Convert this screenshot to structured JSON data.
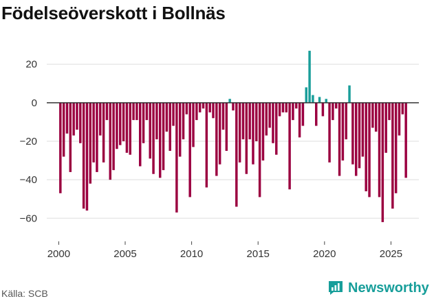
{
  "title": "Födelseöverskott i Bollnäs",
  "source": "Källa: SCB",
  "brand": "Newsworthy",
  "colors": {
    "negative": "#9b0040",
    "positive": "#1a9e9a",
    "grid": "#dddddd",
    "zero": "#333333",
    "brand": "#179e9a"
  },
  "chart_data": {
    "type": "bar",
    "title": "Födelseöverskott i Bollnäs",
    "xlabel": "",
    "ylabel": "",
    "ylim": [
      -72,
      32
    ],
    "xlim": [
      1999.1,
      2027.1
    ],
    "x_ticks": [
      2000,
      2005,
      2010,
      2015,
      2020,
      2025
    ],
    "y_ticks": [
      20,
      0,
      -20,
      -40,
      -60
    ],
    "grid": true,
    "granularity": "quarterly",
    "x_start": "2000 Q1",
    "values": [
      -47,
      -28,
      -16,
      -36,
      -17,
      -14,
      -21,
      -55,
      -56,
      -42,
      -31,
      -36,
      -17,
      -31,
      -9,
      -40,
      -35,
      -24,
      -22,
      -20,
      -26,
      -27,
      -9,
      -9,
      -33,
      -21,
      -9,
      -29,
      -37,
      -19,
      -39,
      -35,
      -15,
      -25,
      -12,
      -57,
      -28,
      -19,
      -6,
      -49,
      -23,
      -9,
      -5,
      -3,
      -44,
      -5,
      -8,
      -38,
      -32,
      -14,
      -25,
      2,
      -4,
      -54,
      -31,
      -19,
      -37,
      -19,
      -32,
      -20,
      -49,
      -30,
      -17,
      -13,
      -21,
      -27,
      -7,
      -5,
      -5,
      -45,
      -9,
      -3,
      -18,
      -12,
      8,
      27,
      4,
      -12,
      3,
      -7,
      2,
      -31,
      -9,
      -3,
      -38,
      -30,
      -19,
      9,
      -32,
      -38,
      -34,
      -28,
      -46,
      -49,
      -13,
      -15,
      -49,
      -62,
      -26,
      -9,
      -55,
      -47,
      -17,
      -6,
      -39
    ]
  }
}
